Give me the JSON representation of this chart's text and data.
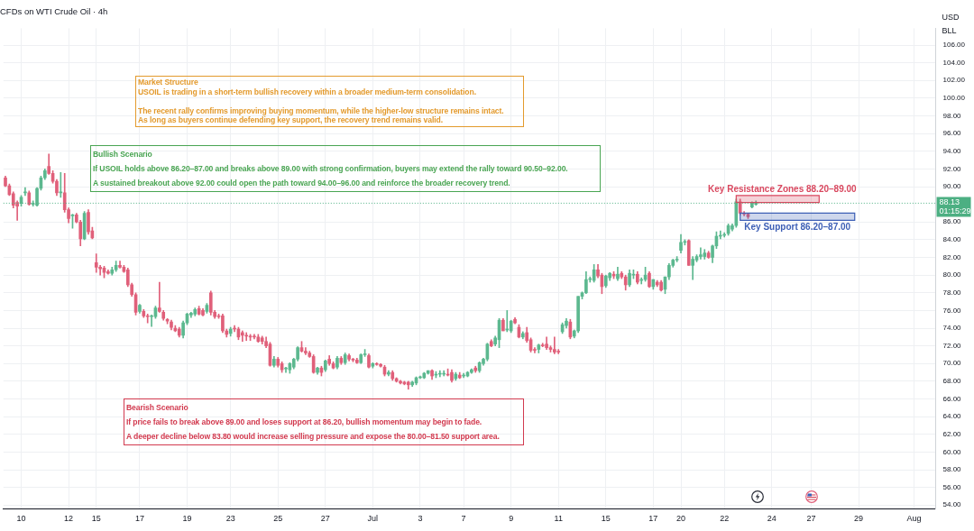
{
  "chart_data": {
    "type": "candlestick",
    "title": "CFDs on WTI Crude Oil · 4h",
    "ylabel": "USD\nBLL",
    "categories": [
      null,
      null,
      null,
      null,
      "10",
      null,
      null,
      null,
      null,
      null,
      null,
      null,
      null,
      null,
      null,
      null,
      "12",
      null,
      null,
      null,
      null,
      null,
      null,
      "15",
      null,
      null,
      null,
      null,
      null,
      null,
      null,
      null,
      null,
      null,
      "17",
      null,
      null,
      null,
      null,
      null,
      null,
      null,
      null,
      null,
      null,
      null,
      "19",
      null,
      null,
      null,
      null,
      null,
      null,
      null,
      null,
      null,
      null,
      "23",
      null,
      null,
      null,
      null,
      null,
      null,
      null,
      null,
      null,
      null,
      null,
      "25",
      null,
      null,
      null,
      null,
      null,
      null,
      null,
      null,
      null,
      null,
      null,
      "27",
      null,
      null,
      null,
      null,
      null,
      null,
      null,
      null,
      null,
      null,
      null,
      "Jul",
      null,
      null,
      null,
      null,
      null,
      null,
      null,
      null,
      null,
      null,
      null,
      "3",
      null,
      null,
      null,
      null,
      null,
      null,
      null,
      null,
      null,
      null,
      "7",
      null,
      null,
      null,
      null,
      null,
      null,
      null,
      null,
      null,
      null,
      null,
      "9",
      null,
      null,
      null,
      null,
      null,
      null,
      null,
      null,
      null,
      null,
      null,
      "11",
      null,
      null,
      null,
      null,
      null,
      null,
      null,
      null,
      null,
      null,
      null,
      "15",
      null,
      null,
      null,
      null,
      null,
      null,
      null,
      null,
      null,
      null,
      null,
      "17",
      null,
      null,
      null,
      null,
      null,
      null,
      "20",
      null,
      null,
      null,
      null,
      null,
      null,
      null,
      null,
      null,
      null,
      "22",
      null,
      null,
      null,
      null,
      null,
      null,
      null,
      null,
      null,
      null,
      null,
      "24",
      null,
      null,
      null,
      null,
      null,
      null,
      null,
      null,
      null,
      "27",
      null,
      null,
      null,
      null,
      null,
      null,
      null,
      null,
      null,
      null,
      null,
      "29",
      null,
      null,
      null,
      null,
      null,
      null,
      null,
      null,
      null,
      null,
      null,
      null,
      null,
      "Aug",
      null,
      null,
      null,
      null,
      null
    ],
    "ohlc": [
      [
        91.0,
        91.2,
        90.0,
        90.1
      ],
      [
        90.1,
        90.3,
        89.0,
        89.1
      ],
      [
        89.2,
        89.4,
        87.6,
        87.9
      ],
      [
        88.2,
        88.4,
        86.2,
        87.8
      ],
      [
        88.1,
        89.0,
        87.8,
        88.8
      ],
      [
        89.3,
        89.9,
        89.0,
        89.4
      ],
      [
        89.3,
        89.5,
        87.9,
        88.0
      ],
      [
        88.0,
        88.4,
        87.8,
        88.1
      ],
      [
        87.9,
        89.9,
        87.8,
        89.8
      ],
      [
        89.8,
        91.2,
        89.6,
        91.0
      ],
      [
        91.0,
        92.0,
        90.8,
        91.8
      ],
      [
        92.3,
        93.7,
        91.4,
        91.5
      ],
      [
        91.5,
        91.8,
        90.4,
        90.6
      ],
      [
        90.6,
        90.8,
        89.0,
        89.3
      ],
      [
        89.3,
        91.6,
        88.8,
        89.4
      ],
      [
        89.3,
        91.5,
        87.1,
        87.4
      ],
      [
        87.4,
        87.6,
        85.9,
        86.4
      ],
      [
        86.7,
        86.9,
        85.3,
        86.8
      ],
      [
        86.8,
        87.0,
        85.9,
        86.0
      ],
      [
        86.0,
        86.2,
        83.3,
        84.1
      ],
      [
        84.1,
        87.2,
        84.0,
        87.0
      ],
      [
        87.1,
        87.4,
        84.6,
        84.9
      ],
      [
        85.0,
        85.4,
        84.1,
        84.2
      ],
      [
        81.4,
        82.4,
        80.3,
        80.9
      ],
      [
        80.9,
        81.1,
        80.0,
        80.7
      ],
      [
        80.8,
        81.0,
        79.7,
        80.3
      ],
      [
        80.4,
        80.6,
        80.1,
        80.2
      ],
      [
        80.2,
        80.9,
        80.0,
        80.6
      ],
      [
        80.6,
        81.6,
        80.4,
        81.1
      ],
      [
        81.1,
        81.6,
        80.8,
        80.9
      ],
      [
        80.9,
        81.1,
        80.3,
        80.4
      ],
      [
        80.6,
        80.8,
        78.7,
        78.9
      ],
      [
        78.9,
        79.1,
        77.6,
        77.8
      ],
      [
        77.8,
        78.0,
        75.5,
        75.8
      ],
      [
        75.9,
        76.7,
        75.7,
        76.6
      ],
      [
        75.9,
        76.1,
        75.2,
        75.4
      ],
      [
        75.4,
        75.6,
        74.6,
        75.3
      ],
      [
        75.3,
        75.5,
        74.2,
        75.4
      ],
      [
        75.3,
        76.5,
        75.1,
        76.3
      ],
      [
        76.3,
        79.2,
        75.8,
        75.9
      ],
      [
        75.8,
        76.0,
        74.9,
        75.1
      ],
      [
        75.0,
        75.1,
        74.5,
        74.8
      ],
      [
        74.7,
        74.9,
        73.8,
        74.1
      ],
      [
        74.0,
        74.3,
        73.6,
        73.7
      ],
      [
        73.9,
        74.1,
        73.0,
        73.2
      ],
      [
        73.2,
        74.8,
        72.9,
        74.6
      ],
      [
        74.6,
        75.7,
        74.4,
        75.6
      ],
      [
        75.5,
        75.8,
        75.2,
        75.7
      ],
      [
        75.6,
        76.3,
        75.4,
        76.1
      ],
      [
        76.2,
        76.5,
        75.5,
        75.6
      ],
      [
        76.0,
        76.2,
        75.4,
        75.5
      ],
      [
        75.9,
        76.8,
        75.7,
        76.6
      ],
      [
        78.0,
        78.2,
        75.5,
        75.8
      ],
      [
        75.8,
        76.0,
        75.1,
        75.3
      ],
      [
        75.4,
        75.6,
        75.1,
        75.3
      ],
      [
        75.4,
        75.6,
        73.5,
        73.7
      ],
      [
        73.7,
        73.9,
        73.0,
        73.3
      ],
      [
        73.4,
        74.1,
        73.1,
        73.9
      ],
      [
        74.0,
        74.3,
        73.6,
        73.9
      ],
      [
        73.9,
        74.1,
        72.7,
        73.0
      ],
      [
        73.5,
        73.7,
        72.5,
        73.2
      ],
      [
        73.2,
        73.5,
        72.6,
        73.1
      ],
      [
        73.1,
        73.3,
        72.6,
        73.0
      ],
      [
        73.1,
        73.3,
        72.8,
        73.0
      ],
      [
        73.0,
        73.3,
        72.4,
        72.5
      ],
      [
        72.9,
        73.1,
        72.2,
        72.5
      ],
      [
        72.5,
        73.0,
        71.8,
        72.0
      ],
      [
        72.2,
        72.4,
        69.7,
        69.8
      ],
      [
        69.8,
        70.8,
        69.6,
        70.5
      ],
      [
        70.5,
        70.7,
        69.6,
        69.8
      ],
      [
        70.0,
        70.2,
        69.0,
        69.3
      ],
      [
        69.4,
        69.6,
        69.0,
        69.5
      ],
      [
        69.3,
        70.1,
        68.9,
        70.0
      ],
      [
        69.6,
        70.6,
        69.4,
        70.5
      ],
      [
        70.5,
        71.9,
        70.3,
        71.8
      ],
      [
        71.8,
        72.5,
        71.3,
        71.4
      ],
      [
        71.4,
        71.8,
        71.0,
        71.2
      ],
      [
        71.2,
        71.4,
        70.7,
        70.8
      ],
      [
        70.8,
        71.0,
        68.9,
        69.0
      ],
      [
        69.0,
        69.6,
        68.8,
        69.5
      ],
      [
        69.5,
        69.7,
        68.6,
        69.0
      ],
      [
        69.3,
        70.4,
        69.1,
        70.3
      ],
      [
        70.5,
        70.9,
        69.8,
        70.0
      ],
      [
        70.0,
        70.2,
        69.4,
        69.5
      ],
      [
        69.6,
        70.8,
        69.4,
        70.6
      ],
      [
        70.6,
        70.8,
        69.9,
        70.1
      ],
      [
        70.1,
        71.2,
        69.9,
        71.0
      ],
      [
        70.9,
        71.1,
        70.3,
        70.5
      ],
      [
        70.5,
        70.6,
        70.2,
        70.4
      ],
      [
        70.4,
        70.6,
        70.0,
        70.1
      ],
      [
        70.1,
        71.1,
        70.0,
        71.0
      ],
      [
        71.0,
        71.6,
        70.8,
        71.0
      ],
      [
        70.9,
        71.1,
        69.5,
        69.6
      ],
      [
        69.7,
        70.1,
        69.5,
        70.0
      ],
      [
        70.0,
        70.1,
        69.8,
        69.9
      ],
      [
        69.9,
        70.0,
        69.6,
        69.7
      ],
      [
        69.6,
        69.8,
        68.6,
        68.8
      ],
      [
        68.8,
        69.2,
        68.6,
        69.0
      ],
      [
        69.0,
        69.2,
        68.1,
        68.3
      ],
      [
        68.3,
        68.4,
        67.9,
        68.0
      ],
      [
        68.0,
        68.1,
        67.7,
        67.8
      ],
      [
        67.9,
        68.0,
        67.6,
        67.7
      ],
      [
        67.9,
        68.0,
        67.1,
        67.6
      ],
      [
        67.6,
        68.0,
        67.4,
        67.9
      ],
      [
        67.8,
        68.5,
        67.6,
        68.4
      ],
      [
        68.4,
        68.6,
        68.3,
        68.5
      ],
      [
        68.4,
        69.0,
        68.3,
        68.9
      ],
      [
        68.9,
        69.2,
        68.8,
        69.2
      ],
      [
        69.2,
        69.3,
        68.2,
        68.6
      ],
      [
        68.7,
        69.1,
        68.4,
        68.7
      ],
      [
        68.8,
        69.2,
        68.5,
        68.9
      ],
      [
        68.8,
        69.2,
        68.6,
        68.9
      ],
      [
        68.8,
        69.4,
        68.6,
        68.7
      ],
      [
        69.0,
        69.3,
        67.9,
        68.1
      ],
      [
        68.3,
        69.0,
        68.1,
        68.8
      ],
      [
        68.7,
        69.0,
        68.3,
        68.4
      ],
      [
        68.6,
        68.9,
        68.4,
        68.6
      ],
      [
        68.6,
        69.1,
        68.5,
        69.0
      ],
      [
        69.0,
        69.4,
        68.9,
        69.3
      ],
      [
        69.5,
        69.7,
        69.0,
        69.2
      ],
      [
        69.2,
        70.2,
        69.0,
        70.1
      ],
      [
        70.0,
        70.6,
        69.8,
        70.5
      ],
      [
        70.5,
        72.3,
        70.3,
        72.2
      ],
      [
        72.5,
        72.7,
        71.9,
        72.0
      ],
      [
        72.2,
        73.1,
        72.0,
        72.9
      ],
      [
        72.7,
        75.1,
        71.8,
        74.9
      ],
      [
        74.9,
        75.1,
        73.7,
        73.7
      ],
      [
        73.8,
        76.0,
        73.6,
        73.8
      ],
      [
        73.7,
        74.9,
        73.5,
        74.8
      ],
      [
        75.0,
        75.2,
        74.5,
        74.6
      ],
      [
        74.1,
        74.4,
        72.9,
        73.0
      ],
      [
        73.0,
        73.6,
        72.8,
        73.4
      ],
      [
        73.5,
        74.1,
        72.4,
        72.6
      ],
      [
        72.7,
        72.9,
        71.3,
        71.5
      ],
      [
        71.6,
        71.8,
        71.2,
        71.5
      ],
      [
        71.6,
        72.2,
        71.2,
        72.1
      ],
      [
        72.1,
        72.3,
        71.9,
        72.0
      ],
      [
        72.2,
        73.0,
        71.6,
        71.8
      ],
      [
        71.8,
        72.0,
        71.3,
        71.6
      ],
      [
        71.6,
        73.0,
        71.1,
        71.3
      ],
      [
        71.4,
        71.6,
        71.1,
        71.3
      ],
      [
        73.6,
        74.6,
        73.4,
        74.4
      ],
      [
        74.3,
        75.1,
        74.0,
        74.8
      ],
      [
        74.7,
        75.0,
        72.8,
        73.0
      ],
      [
        73.1,
        73.8,
        72.9,
        73.7
      ],
      [
        73.7,
        77.6,
        73.5,
        77.6
      ],
      [
        77.6,
        78.1,
        77.3,
        78.0
      ],
      [
        78.0,
        80.4,
        77.9,
        79.5
      ],
      [
        79.5,
        79.8,
        79.2,
        79.5
      ],
      [
        79.4,
        81.2,
        79.2,
        80.6
      ],
      [
        80.6,
        81.2,
        79.7,
        79.9
      ],
      [
        80.0,
        80.2,
        77.9,
        78.7
      ],
      [
        78.8,
        80.0,
        78.6,
        79.9
      ],
      [
        79.7,
        80.3,
        79.4,
        80.2
      ],
      [
        80.1,
        80.4,
        79.6,
        79.9
      ],
      [
        79.6,
        80.9,
        79.4,
        80.1
      ],
      [
        80.2,
        80.4,
        79.6,
        79.8
      ],
      [
        79.8,
        80.0,
        78.3,
        78.9
      ],
      [
        78.9,
        80.6,
        78.7,
        80.2
      ],
      [
        80.0,
        80.6,
        79.6,
        80.0
      ],
      [
        80.1,
        80.4,
        79.0,
        79.2
      ],
      [
        79.4,
        79.7,
        79.0,
        79.5
      ],
      [
        79.5,
        80.9,
        79.3,
        80.0
      ],
      [
        80.2,
        80.4,
        78.6,
        78.7
      ],
      [
        78.7,
        79.5,
        78.4,
        79.5
      ],
      [
        79.2,
        79.4,
        78.7,
        78.9
      ],
      [
        79.2,
        79.4,
        78.2,
        78.3
      ],
      [
        78.4,
        79.8,
        77.9,
        79.8
      ],
      [
        79.8,
        81.3,
        79.5,
        81.1
      ],
      [
        81.1,
        81.8,
        80.9,
        81.7
      ],
      [
        81.7,
        82.1,
        81.5,
        81.7
      ],
      [
        82.8,
        84.6,
        82.5,
        83.7
      ],
      [
        83.7,
        84.0,
        83.4,
        83.8
      ],
      [
        83.9,
        84.0,
        81.1,
        81.1
      ],
      [
        81.1,
        82.1,
        79.5,
        81.8
      ],
      [
        81.7,
        82.3,
        81.5,
        82.1
      ],
      [
        82.1,
        83.1,
        81.8,
        82.3
      ],
      [
        82.1,
        82.9,
        81.8,
        82.5
      ],
      [
        82.5,
        82.7,
        81.9,
        82.0
      ],
      [
        82.0,
        83.4,
        81.4,
        83.3
      ],
      [
        83.3,
        84.9,
        83.0,
        84.4
      ],
      [
        84.4,
        85.0,
        84.1,
        84.5
      ],
      [
        84.5,
        84.8,
        84.3,
        84.6
      ],
      [
        84.7,
        85.8,
        84.5,
        85.6
      ],
      [
        85.2,
        85.8,
        85.0,
        85.6
      ],
      [
        85.6,
        88.6,
        85.4,
        88.3
      ],
      [
        88.3,
        88.6,
        86.8,
        87.0
      ],
      [
        87.0,
        87.2,
        86.7,
        86.9
      ],
      [
        86.9,
        87.0,
        86.4,
        86.6
      ],
      [
        87.7,
        88.3,
        87.6,
        88.2
      ],
      [
        88.0,
        88.4,
        87.9,
        88.13
      ],
      null,
      null,
      null,
      null,
      null,
      null,
      null,
      null,
      null,
      null,
      null,
      null,
      null,
      null,
      null,
      null,
      null,
      null,
      null,
      null,
      null,
      null,
      null,
      null,
      null,
      null,
      null,
      null,
      null,
      null,
      null,
      null,
      null,
      null,
      null,
      null,
      null,
      null,
      null,
      null,
      null,
      null,
      null,
      null,
      null
    ],
    "ylim": [
      53.6,
      107.9
    ],
    "yticks": [
      {
        "value": 54,
        "label": "54.00"
      },
      {
        "value": 56,
        "label": "56.00"
      },
      {
        "value": 58,
        "label": "58.00"
      },
      {
        "value": 60,
        "label": "60.00"
      },
      {
        "value": 62,
        "label": "62.00"
      },
      {
        "value": 64,
        "label": "64.00"
      },
      {
        "value": 66,
        "label": "66.00"
      },
      {
        "value": 68,
        "label": "68.00"
      },
      {
        "value": 70,
        "label": "70.00"
      },
      {
        "value": 72,
        "label": "72.00"
      },
      {
        "value": 74,
        "label": "74.00"
      },
      {
        "value": 76,
        "label": "76.00"
      },
      {
        "value": 78,
        "label": "78.00"
      },
      {
        "value": 80,
        "label": "80.00"
      },
      {
        "value": 82,
        "label": "82.00"
      },
      {
        "value": 84,
        "label": "84.00"
      },
      {
        "value": 86,
        "label": "86.00"
      },
      {
        "value": 90,
        "label": "90.00"
      },
      {
        "value": 92,
        "label": "92.00"
      },
      {
        "value": 94,
        "label": "94.00"
      },
      {
        "value": 96,
        "label": "96.00"
      },
      {
        "value": 98,
        "label": "98.00"
      },
      {
        "value": 100,
        "label": "100.00"
      },
      {
        "value": 102,
        "label": "102.00"
      },
      {
        "value": 104,
        "label": "104.00"
      },
      {
        "value": 106,
        "label": "106.00"
      }
    ],
    "grid": true,
    "legend": false,
    "ref_lines": [
      {
        "axis": "y",
        "value": 88.13,
        "label": "88.13",
        "color": "#4caf82",
        "line_style": "dotted"
      }
    ],
    "bands": [
      {
        "axis": "y",
        "from": 88.2,
        "to": 89.0,
        "label": "Key Resistance Zones 88.20–89.00",
        "color": "#d9485f"
      },
      {
        "axis": "y",
        "from": 86.2,
        "to": 87.0,
        "label": "Key Support 86.20–87.00",
        "color": "#3d5fb5"
      }
    ],
    "annotations": [
      "Market Structure\nUSOIL is trading in a short-term bullish recovery within a broader medium-term consolidation.\n\nThe recent rally confirms improving buying momentum, while the higher-low structure remains intact.\nAs long as buyers continue defending key support, the recovery trend remains valid.",
      "Bullish Scenario\nIf USOIL holds above 86.20–87.00 and breaks above 89.00 with strong confirmation, buyers may extend the rally toward 90.50–92.00.\nA sustained breakout above 92.00 could open the path toward 94.00–96.00 and reinforce the broader recovery trend.",
      "Bearish Scenario\nIf price fails to break above 89.00 and loses support at 86.20, bullish momentum may begin to fade.\nA deeper decline below 83.80 would increase selling pressure and expose the 80.00–81.50 support area.",
      "01:15:29"
    ]
  }
}
